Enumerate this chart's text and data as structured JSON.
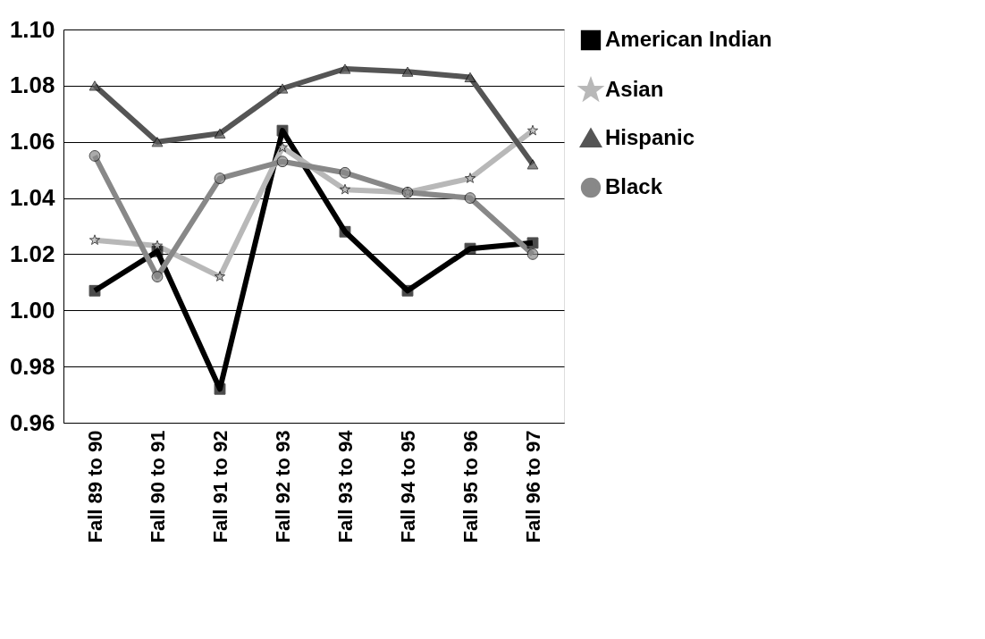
{
  "chart_data": {
    "type": "line",
    "categories": [
      "Fall 89 to 90",
      "Fall 90 to 91",
      "Fall 91 to 92",
      "Fall 92 to 93",
      "Fall 93 to 94",
      "Fall 94 to 95",
      "Fall 95 to 96",
      "Fall 96 to 97"
    ],
    "series": [
      {
        "name": "American Indian",
        "color": "#000000",
        "marker": "square",
        "values": [
          1.007,
          1.021,
          0.972,
          1.064,
          1.028,
          1.007,
          1.022,
          1.024
        ]
      },
      {
        "name": "Asian",
        "color": "#b8b8b8",
        "marker": "star",
        "values": [
          1.025,
          1.023,
          1.012,
          1.058,
          1.043,
          1.042,
          1.047,
          1.064
        ]
      },
      {
        "name": "Hispanic",
        "color": "#555555",
        "marker": "triangle",
        "values": [
          1.08,
          1.06,
          1.063,
          1.079,
          1.086,
          1.085,
          1.083,
          1.052
        ]
      },
      {
        "name": "Black",
        "color": "#888888",
        "marker": "circle",
        "values": [
          1.055,
          1.012,
          1.047,
          1.053,
          1.049,
          1.042,
          1.04,
          1.02
        ]
      }
    ],
    "ylim": [
      0.96,
      1.1
    ],
    "yticks": [
      0.96,
      0.98,
      {
        "value": 1.0,
        "label": "1.00"
      },
      1.02,
      1.04,
      1.06,
      1.08,
      {
        "value": 1.1,
        "label": "1.10"
      }
    ],
    "grid": "y",
    "legend": "right",
    "line_style": "solid"
  }
}
